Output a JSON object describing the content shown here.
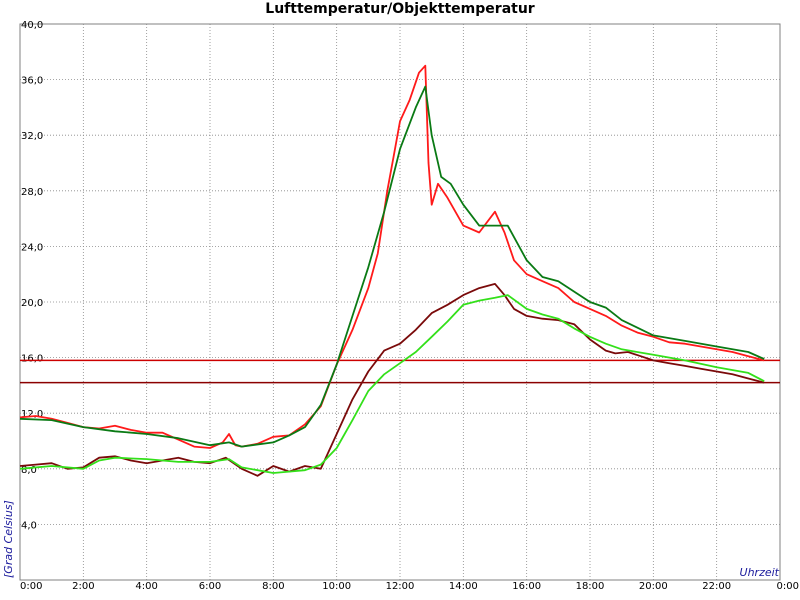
{
  "chart_data": {
    "type": "line",
    "title": "Lufttemperatur/Objekttemperatur",
    "xlabel": "Uhrzeit",
    "ylabel": "[Grad Celsius]",
    "x_ticks": [
      "0:00",
      "2:00",
      "4:00",
      "6:00",
      "8:00",
      "10:00",
      "12:00",
      "14:00",
      "16:00",
      "18:00",
      "20:00",
      "22:00",
      "0:00"
    ],
    "x_tick_hours": [
      0,
      2,
      4,
      6,
      8,
      10,
      12,
      14,
      16,
      18,
      20,
      22,
      24
    ],
    "y_ticks": [
      "",
      "4,0",
      "8,0",
      "12,0",
      "16,0",
      "20,0",
      "24,0",
      "28,0",
      "32,0",
      "36,0",
      "40,0"
    ],
    "xlim": [
      0,
      24
    ],
    "ylim": [
      0,
      40
    ],
    "grid": true,
    "reference_lines": [
      {
        "y": 15.8,
        "color": "#cc0000"
      },
      {
        "y": 14.2,
        "color": "#8b0000"
      }
    ],
    "series": [
      {
        "color": "#ff1a1a",
        "x": [
          0,
          0.5,
          1,
          1.5,
          2,
          2.5,
          3,
          3.5,
          4,
          4.5,
          5,
          5.5,
          6,
          6.4,
          6.6,
          6.8,
          7,
          7.5,
          8,
          8.5,
          9,
          9.5,
          10,
          10.5,
          11,
          11.3,
          11.6,
          11.8,
          12,
          12.3,
          12.6,
          12.8,
          12.9,
          13,
          13.2,
          13.5,
          14,
          14.5,
          15,
          15.3,
          15.6,
          16,
          16.5,
          17,
          17.5,
          18,
          18.5,
          19,
          19.5,
          20,
          20.5,
          21,
          21.5,
          22,
          22.5,
          23,
          23.5
        ],
        "y": [
          11.7,
          11.8,
          11.6,
          11.3,
          11.0,
          10.9,
          11.1,
          10.8,
          10.6,
          10.6,
          10.1,
          9.6,
          9.5,
          9.9,
          10.5,
          9.7,
          9.6,
          9.8,
          10.3,
          10.4,
          11.2,
          12.5,
          15.5,
          18.0,
          21.0,
          23.5,
          28.0,
          30.5,
          33.0,
          34.5,
          36.5,
          37.0,
          30.0,
          27.0,
          28.5,
          27.5,
          25.5,
          25.0,
          26.5,
          25.0,
          23.0,
          22.0,
          21.5,
          21.0,
          20.0,
          19.5,
          19.0,
          18.3,
          17.8,
          17.5,
          17.1,
          17.0,
          16.8,
          16.6,
          16.4,
          16.1,
          15.8
        ]
      },
      {
        "color": "#0a7a14",
        "x": [
          0,
          1,
          2,
          3,
          4,
          5,
          6,
          6.6,
          7,
          8,
          8.5,
          9,
          9.5,
          10,
          10.5,
          11,
          11.5,
          12,
          12.5,
          12.8,
          13,
          13.3,
          13.6,
          14,
          14.5,
          15,
          15.4,
          16,
          16.5,
          17,
          18,
          18.5,
          19,
          20,
          21,
          22,
          23,
          23.5
        ],
        "y": [
          11.6,
          11.5,
          11.0,
          10.7,
          10.5,
          10.2,
          9.7,
          9.9,
          9.6,
          9.9,
          10.4,
          11.0,
          12.6,
          15.5,
          19.0,
          22.5,
          26.5,
          31.0,
          34.0,
          35.5,
          32.0,
          29.0,
          28.5,
          27.0,
          25.5,
          25.5,
          25.5,
          23.0,
          21.8,
          21.5,
          20.0,
          19.6,
          18.7,
          17.6,
          17.2,
          16.8,
          16.4,
          15.9
        ]
      },
      {
        "color": "#7a0a0a",
        "x": [
          0,
          0.5,
          1,
          1.5,
          2,
          2.5,
          3,
          3.5,
          4,
          4.5,
          5,
          5.5,
          6,
          6.5,
          7,
          7.5,
          8,
          8.5,
          9,
          9.5,
          10,
          10.5,
          11,
          11.5,
          12,
          12.5,
          13,
          13.5,
          14,
          14.5,
          15,
          15.3,
          15.6,
          16,
          16.5,
          17,
          17.5,
          18,
          18.5,
          18.8,
          19.2,
          19.6,
          20,
          20.5,
          21,
          21.5,
          22,
          22.5,
          23,
          23.5
        ],
        "y": [
          8.2,
          8.3,
          8.4,
          8.0,
          8.1,
          8.8,
          8.9,
          8.6,
          8.4,
          8.6,
          8.8,
          8.5,
          8.4,
          8.8,
          8.0,
          7.5,
          8.2,
          7.8,
          8.2,
          8.0,
          10.5,
          13.0,
          15.0,
          16.5,
          17.0,
          18.0,
          19.2,
          19.8,
          20.5,
          21.0,
          21.3,
          20.5,
          19.5,
          19.0,
          18.8,
          18.7,
          18.4,
          17.3,
          16.5,
          16.3,
          16.4,
          16.1,
          15.8,
          15.6,
          15.4,
          15.2,
          15.0,
          14.8,
          14.5,
          14.2
        ]
      },
      {
        "color": "#33e01a",
        "x": [
          0,
          1,
          2,
          2.5,
          3,
          4,
          5,
          6,
          6.6,
          7,
          8,
          8.5,
          9,
          9.5,
          10,
          10.5,
          11,
          11.5,
          12,
          12.5,
          13,
          13.5,
          14,
          14.5,
          15,
          15.4,
          16,
          16.5,
          17,
          17.5,
          18,
          18.5,
          19,
          20,
          21,
          22,
          23,
          23.5
        ],
        "y": [
          8.0,
          8.2,
          8.0,
          8.6,
          8.8,
          8.7,
          8.5,
          8.5,
          8.7,
          8.1,
          7.7,
          7.8,
          7.9,
          8.3,
          9.5,
          11.5,
          13.6,
          14.8,
          15.6,
          16.4,
          17.5,
          18.6,
          19.8,
          20.1,
          20.3,
          20.5,
          19.5,
          19.1,
          18.8,
          18.1,
          17.5,
          17.0,
          16.6,
          16.2,
          15.8,
          15.3,
          14.9,
          14.3
        ]
      }
    ]
  }
}
